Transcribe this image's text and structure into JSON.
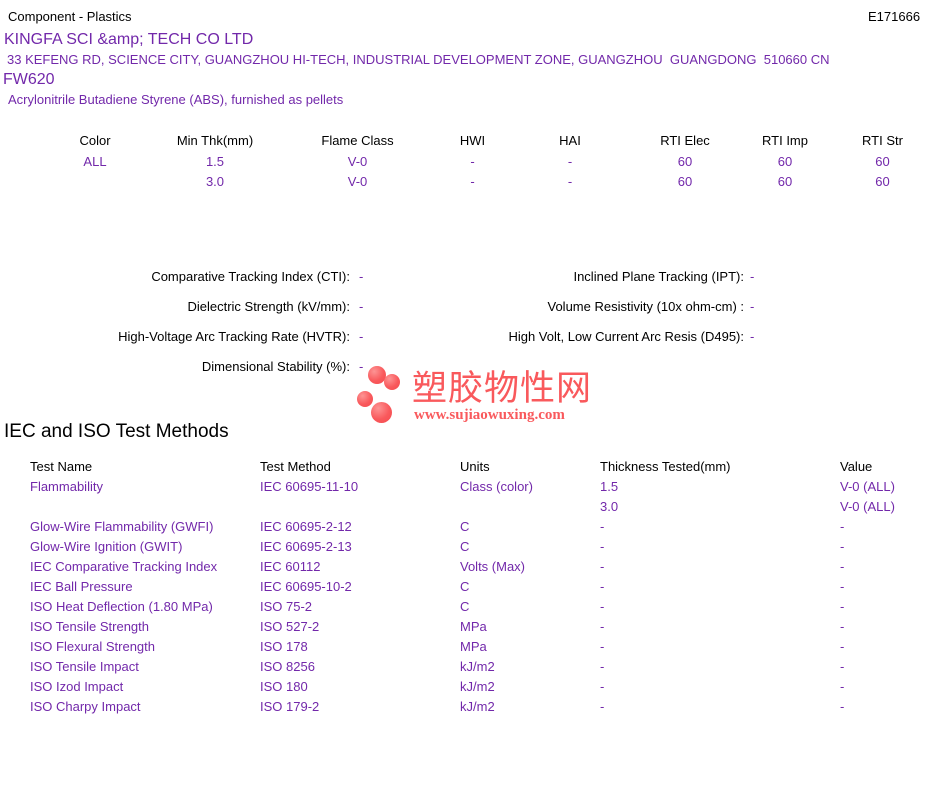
{
  "header": {
    "category": "Component - Plastics",
    "file_number": "E171666"
  },
  "company": {
    "name": "KINGFA SCI &amp; TECH CO LTD",
    "address": "33 KEFENG RD, SCIENCE CITY, GUANGZHOU HI-TECH, INDUSTRIAL DEVELOPMENT ZONE, GUANGZHOU  GUANGDONG  510660 CN",
    "model": "FW620",
    "material": "Acrylonitrile Butadiene Styrene (ABS), furnished as pellets"
  },
  "ratings_table": {
    "headers": [
      "Color",
      "Min Thk(mm)",
      "Flame Class",
      "HWI",
      "HAI",
      "RTI Elec",
      "RTI Imp",
      "RTI Str"
    ],
    "rows": [
      [
        "ALL",
        "1.5",
        "V-0",
        "-",
        "-",
        "60",
        "60",
        "60"
      ],
      [
        "",
        "3.0",
        "V-0",
        "-",
        "-",
        "60",
        "60",
        "60"
      ]
    ]
  },
  "electrical_properties": {
    "left": [
      {
        "label": "Comparative Tracking Index (CTI):",
        "value": "-"
      },
      {
        "label": "Dielectric Strength (kV/mm):",
        "value": "-"
      },
      {
        "label": "High-Voltage Arc Tracking Rate (HVTR):",
        "value": "-"
      },
      {
        "label": "Dimensional Stability (%):",
        "value": "-"
      }
    ],
    "right": [
      {
        "label": "Inclined Plane Tracking (IPT):",
        "value": "-"
      },
      {
        "label": "Volume Resistivity (10x ohm-cm) :",
        "value": "-"
      },
      {
        "label": "High Volt, Low Current Arc Resis (D495):",
        "value": "-"
      }
    ]
  },
  "watermark": {
    "site_name": "塑胶物性网",
    "site_url": "www.sujiaowuxing.com",
    "logo_dot_icon": "red-circle",
    "logo_color": "#f9595c"
  },
  "test_methods": {
    "heading": "IEC and ISO Test Methods",
    "headers": [
      "Test Name",
      "Test Method",
      "Units",
      "Thickness Tested(mm)",
      "Value"
    ],
    "rows": [
      {
        "test_name": "Flammability",
        "test_method": "IEC 60695-11-10",
        "units": "Class (color)",
        "thickness": "1.5",
        "value": "V-0 (ALL)"
      },
      {
        "test_name": "",
        "test_method": "",
        "units": "",
        "thickness": "3.0",
        "value": "V-0 (ALL)"
      },
      {
        "test_name": "Glow-Wire Flammability (GWFI)",
        "test_method": "IEC 60695-2-12",
        "units": "C",
        "thickness": "-",
        "value": "-"
      },
      {
        "test_name": "Glow-Wire Ignition (GWIT)",
        "test_method": "IEC 60695-2-13",
        "units": "C",
        "thickness": "-",
        "value": "-"
      },
      {
        "test_name": "IEC Comparative Tracking Index",
        "test_method": "IEC 60112",
        "units": "Volts (Max)",
        "thickness": "-",
        "value": "-"
      },
      {
        "test_name": "IEC Ball Pressure",
        "test_method": "IEC 60695-10-2",
        "units": "C",
        "thickness": "-",
        "value": "-"
      },
      {
        "test_name": "ISO Heat Deflection (1.80 MPa)",
        "test_method": "ISO 75-2",
        "units": "C",
        "thickness": "-",
        "value": "-"
      },
      {
        "test_name": "ISO Tensile Strength",
        "test_method": "ISO 527-2",
        "units": "MPa",
        "thickness": "-",
        "value": "-"
      },
      {
        "test_name": "ISO Flexural Strength",
        "test_method": "ISO 178",
        "units": "MPa",
        "thickness": "-",
        "value": "-"
      },
      {
        "test_name": "ISO Tensile Impact",
        "test_method": "ISO 8256",
        "units": "kJ/m2",
        "thickness": "-",
        "value": "-"
      },
      {
        "test_name": "ISO Izod Impact",
        "test_method": "ISO 180",
        "units": "kJ/m2",
        "thickness": "-",
        "value": "-"
      },
      {
        "test_name": "ISO Charpy Impact",
        "test_method": "ISO 179-2",
        "units": "kJ/m2",
        "thickness": "-",
        "value": "-"
      }
    ]
  },
  "colors": {
    "accent_purple": "#7228aa",
    "logo_red": "#f9595c",
    "text": "#000000",
    "background": "#ffffff"
  }
}
